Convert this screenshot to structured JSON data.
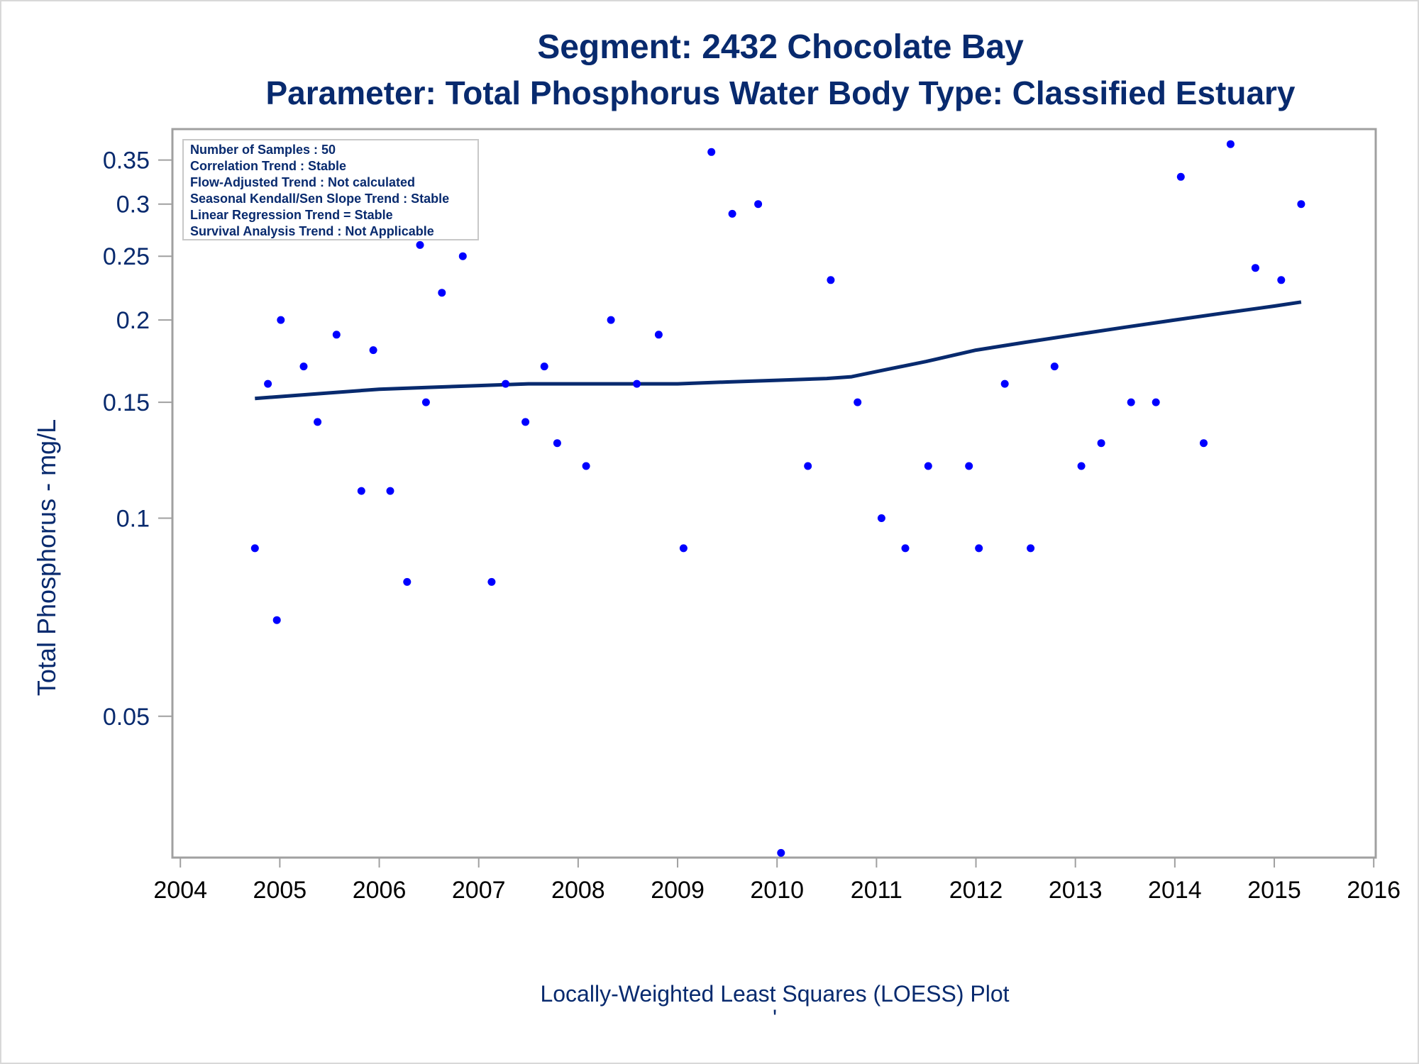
{
  "titles": {
    "line1": "Segment: 2432  Chocolate Bay",
    "line2": "Parameter: Total Phosphorus   Water Body Type: Classified Estuary"
  },
  "inset": {
    "lines": [
      "Number of Samples : 50",
      "Correlation Trend : Stable",
      "Flow-Adjusted Trend : Not calculated",
      "Seasonal Kendall/Sen Slope Trend : Stable",
      "Linear Regression Trend = Stable",
      "Survival Analysis Trend : Not Applicable"
    ]
  },
  "footnote": "Locally-Weighted Least Squares (LOESS) Plot",
  "footnote_mark": "'",
  "colors": {
    "text": "#082a6e",
    "points": "#0000ff",
    "loess_line": "#082a6e",
    "frame": "#a0a0a0"
  },
  "chart_data": {
    "type": "scatter",
    "ylabel": "Total Phosphorus - mg/L",
    "xlabel": "",
    "yscale": "log",
    "xlim": [
      2004,
      2016
    ],
    "ylim": [
      0.0305,
      0.39
    ],
    "x_ticks": [
      2004,
      2005,
      2006,
      2007,
      2008,
      2009,
      2010,
      2011,
      2012,
      2013,
      2014,
      2015,
      2016
    ],
    "x_tick_labels": [
      "2004",
      "2005",
      "2006",
      "2007",
      "2008",
      "2009",
      "2010",
      "2011",
      "2012",
      "2013",
      "2014",
      "2015",
      "2016"
    ],
    "y_ticks": [
      0.05,
      0.1,
      0.15,
      0.2,
      0.25,
      0.3,
      0.35
    ],
    "y_tick_labels": [
      "0.05",
      "0.1",
      "0.15",
      "0.2",
      "0.25",
      "0.3",
      "0.35"
    ],
    "grid": false,
    "series": [
      {
        "kind": "points",
        "x": [
          2004.75,
          2004.88,
          2004.97,
          2005.01,
          2005.24,
          2005.38,
          2005.57,
          2005.82,
          2005.94,
          2006.11,
          2006.28,
          2006.41,
          2006.47,
          2006.63,
          2006.84,
          2007.13,
          2007.27,
          2007.47,
          2007.66,
          2007.79,
          2008.08,
          2008.33,
          2008.59,
          2008.81,
          2009.06,
          2009.34,
          2009.55,
          2009.81,
          2010.04,
          2010.31,
          2010.54,
          2010.81,
          2011.05,
          2011.29,
          2011.52,
          2011.93,
          2012.03,
          2012.29,
          2012.55,
          2012.79,
          2013.06,
          2013.26,
          2013.56,
          2013.81,
          2014.06,
          2014.29,
          2014.56,
          2014.81,
          2015.07,
          2015.27
        ],
        "y": [
          0.09,
          0.16,
          0.07,
          0.2,
          0.17,
          0.14,
          0.19,
          0.11,
          0.18,
          0.11,
          0.08,
          0.26,
          0.15,
          0.22,
          0.25,
          0.08,
          0.16,
          0.14,
          0.17,
          0.13,
          0.12,
          0.2,
          0.16,
          0.19,
          0.09,
          0.36,
          0.29,
          0.3,
          0.031,
          0.12,
          0.23,
          0.15,
          0.1,
          0.09,
          0.12,
          0.12,
          0.09,
          0.16,
          0.09,
          0.17,
          0.12,
          0.13,
          0.15,
          0.15,
          0.33,
          0.13,
          0.37,
          0.24,
          0.23,
          0.3
        ]
      },
      {
        "kind": "line",
        "x": [
          2004.75,
          2005.0,
          2005.5,
          2006.0,
          2006.5,
          2007.0,
          2007.5,
          2008.0,
          2008.5,
          2009.0,
          2009.5,
          2010.0,
          2010.5,
          2010.75,
          2011.0,
          2011.5,
          2012.0,
          2012.5,
          2013.0,
          2013.5,
          2014.0,
          2014.5,
          2015.0,
          2015.27
        ],
        "y": [
          0.152,
          0.153,
          0.155,
          0.157,
          0.158,
          0.159,
          0.16,
          0.16,
          0.16,
          0.16,
          0.161,
          0.162,
          0.163,
          0.164,
          0.167,
          0.173,
          0.18,
          0.185,
          0.19,
          0.195,
          0.2,
          0.205,
          0.21,
          0.213
        ]
      }
    ]
  }
}
